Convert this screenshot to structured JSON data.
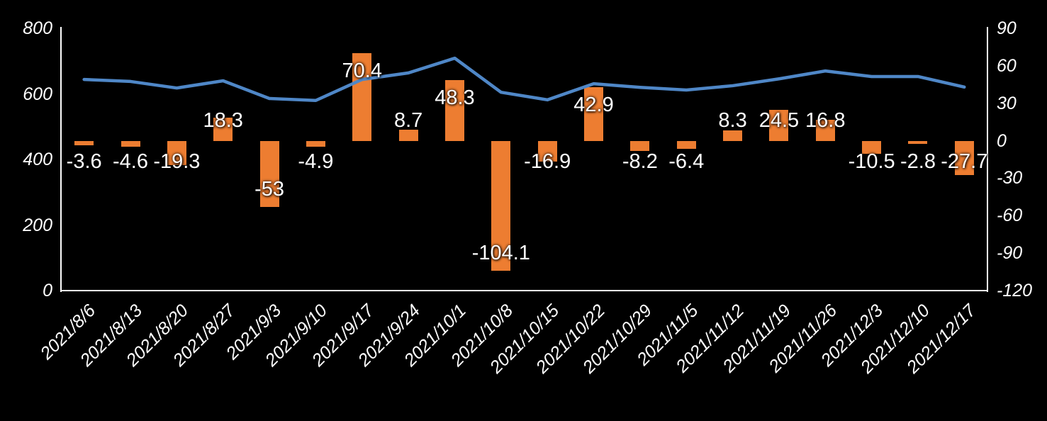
{
  "chart": {
    "title": "",
    "legend": "none",
    "background_color": "#000000",
    "text_color": "#FFFFFF",
    "axis_color": "#FFFFFF",
    "bar_color": "#ED7D31",
    "line_color": "#4F87C7"
  },
  "chart_data": {
    "type": "bar",
    "subtype": "combo bar+line, dual axis",
    "categories": [
      "2021/8/6",
      "2021/8/13",
      "2021/8/20",
      "2021/8/27",
      "2021/9/3",
      "2021/9/10",
      "2021/9/17",
      "2021/9/24",
      "2021/10/1",
      "2021/10/8",
      "2021/10/15",
      "2021/10/22",
      "2021/10/29",
      "2021/11/5",
      "2021/11/12",
      "2021/11/19",
      "2021/11/26",
      "2021/12/3",
      "2021/12/10",
      "2021/12/17"
    ],
    "series": [
      {
        "name": "weekly-change-bars",
        "type": "bar",
        "y_axis": "right",
        "color": "#ED7D31",
        "data_labels_shown": true,
        "values": [
          -3.6,
          -4.6,
          -19.3,
          18.3,
          -53,
          -4.9,
          70.4,
          8.7,
          48.3,
          -104.1,
          -16.9,
          42.9,
          -8.2,
          -6.4,
          8.3,
          24.5,
          16.8,
          -10.5,
          -2.8,
          -27.7
        ]
      },
      {
        "name": "level-line",
        "type": "line",
        "y_axis": "left",
        "color": "#4F87C7",
        "data_labels_shown": false,
        "values": [
          644,
          638,
          618,
          640,
          586,
          580,
          644,
          664,
          709,
          605,
          582,
          631,
          620,
          612,
          625,
          646,
          670,
          653,
          653,
          621
        ]
      }
    ],
    "left_axis": {
      "min": 0,
      "max": 800,
      "tick_interval": 200,
      "ticks": [
        800,
        600,
        400,
        200,
        0
      ]
    },
    "right_axis": {
      "min": -120,
      "max": 90,
      "tick_interval": 30,
      "ticks": [
        90,
        60,
        30,
        0,
        -30,
        -60,
        -90,
        -120
      ]
    },
    "grid": false,
    "legend_position": "none"
  }
}
